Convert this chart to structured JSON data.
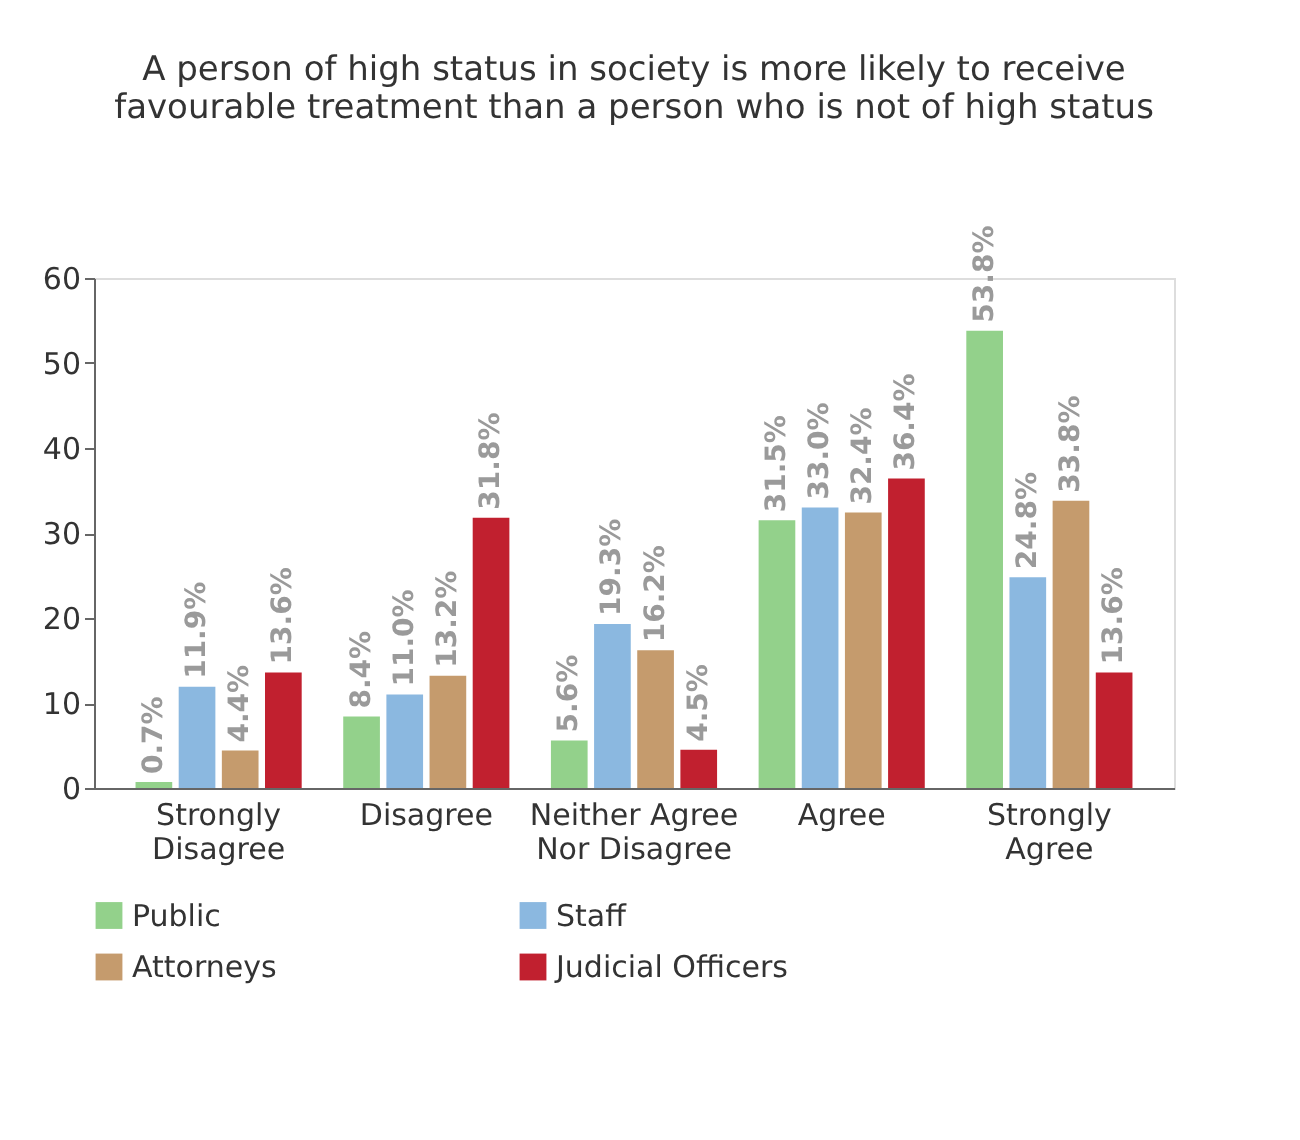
{
  "chart_data": {
    "type": "bar",
    "title": [
      "A person of high status in society is more likely to receive",
      "favourable treatment than a person who is not of high status"
    ],
    "categories": [
      "Strongly Disagree",
      "Disagree",
      "Neither Agree Nor Disagree",
      "Agree",
      "Strongly Agree"
    ],
    "series": [
      {
        "name": "Public",
        "color": "#93d18b",
        "values": [
          0.7,
          8.4,
          5.6,
          31.5,
          53.8
        ],
        "value_labels": [
          "0.7%",
          "8.4%",
          "5.6%",
          "31.5%",
          "53.8%"
        ]
      },
      {
        "name": "Staff",
        "color": "#8bb8e0",
        "values": [
          11.9,
          11.0,
          19.3,
          33.0,
          24.8
        ],
        "value_labels": [
          "11.9%",
          "11.0%",
          "19.3%",
          "33.0%",
          "24.8%"
        ]
      },
      {
        "name": "Attorneys",
        "color": "#c59b6d",
        "values": [
          4.4,
          13.2,
          16.2,
          32.4,
          33.8
        ],
        "value_labels": [
          "4.4%",
          "13.2%",
          "16.2%",
          "32.4%",
          "33.8%"
        ]
      },
      {
        "name": "Judicial Officers",
        "color": "#c1202f",
        "values": [
          13.6,
          31.8,
          4.5,
          36.4,
          13.6
        ],
        "value_labels": [
          "13.6%",
          "31.8%",
          "4.5%",
          "36.4%",
          "13.6%"
        ]
      }
    ],
    "ylim": [
      0,
      60
    ],
    "yticks": [
      0,
      10,
      20,
      30,
      40,
      50,
      60
    ],
    "grid": false,
    "legend": "bottom"
  }
}
